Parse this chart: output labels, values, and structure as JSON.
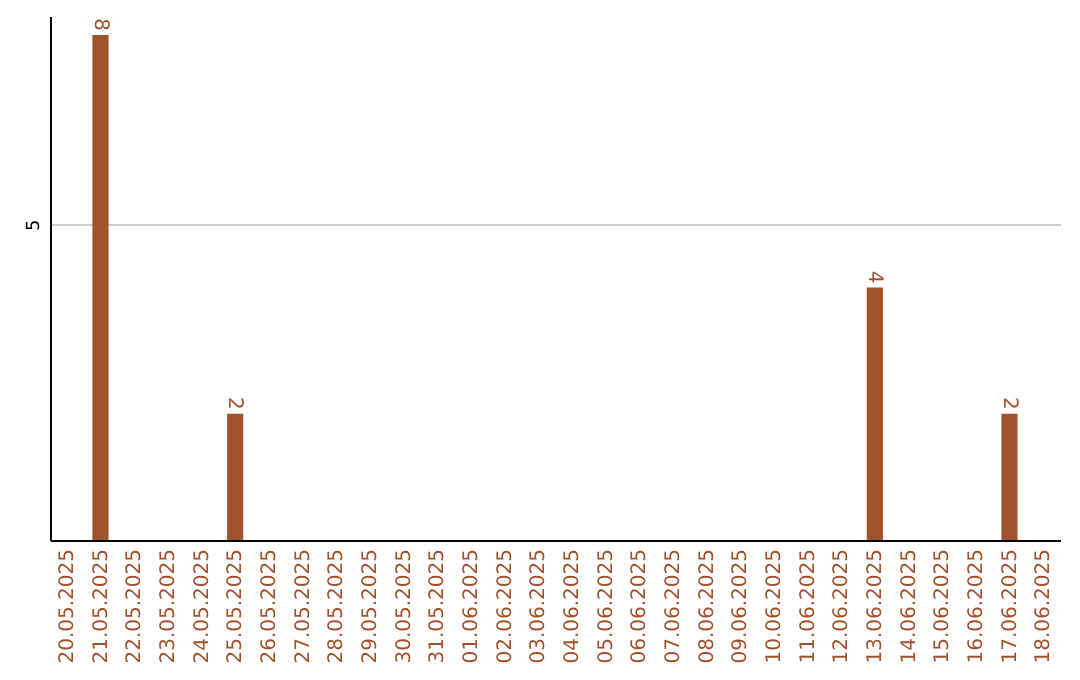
{
  "chart_data": {
    "type": "bar",
    "categories": [
      "20.05.2025",
      "21.05.2025",
      "22.05.2025",
      "23.05.2025",
      "24.05.2025",
      "25.05.2025",
      "26.05.2025",
      "27.05.2025",
      "28.05.2025",
      "29.05.2025",
      "30.05.2025",
      "31.05.2025",
      "01.06.2025",
      "02.06.2025",
      "03.06.2025",
      "04.06.2025",
      "05.06.2025",
      "06.06.2025",
      "07.06.2025",
      "08.06.2025",
      "09.06.2025",
      "10.06.2025",
      "11.06.2025",
      "12.06.2025",
      "13.06.2025",
      "14.06.2025",
      "15.06.2025",
      "16.06.2025",
      "17.06.2025",
      "18.06.2025"
    ],
    "values": [
      0,
      8,
      0,
      0,
      0,
      2,
      0,
      0,
      0,
      0,
      0,
      0,
      0,
      0,
      0,
      0,
      0,
      0,
      0,
      0,
      0,
      0,
      0,
      0,
      4,
      0,
      0,
      0,
      2,
      0
    ],
    "value_labels": [
      null,
      "8",
      null,
      null,
      null,
      "2",
      null,
      null,
      null,
      null,
      null,
      null,
      null,
      null,
      null,
      null,
      null,
      null,
      null,
      null,
      null,
      null,
      null,
      null,
      "4",
      null,
      null,
      null,
      "2",
      null
    ],
    "color": "#a0522d",
    "ylim": [
      0,
      8.3
    ],
    "yticks": [
      5
    ],
    "grid": "y"
  }
}
